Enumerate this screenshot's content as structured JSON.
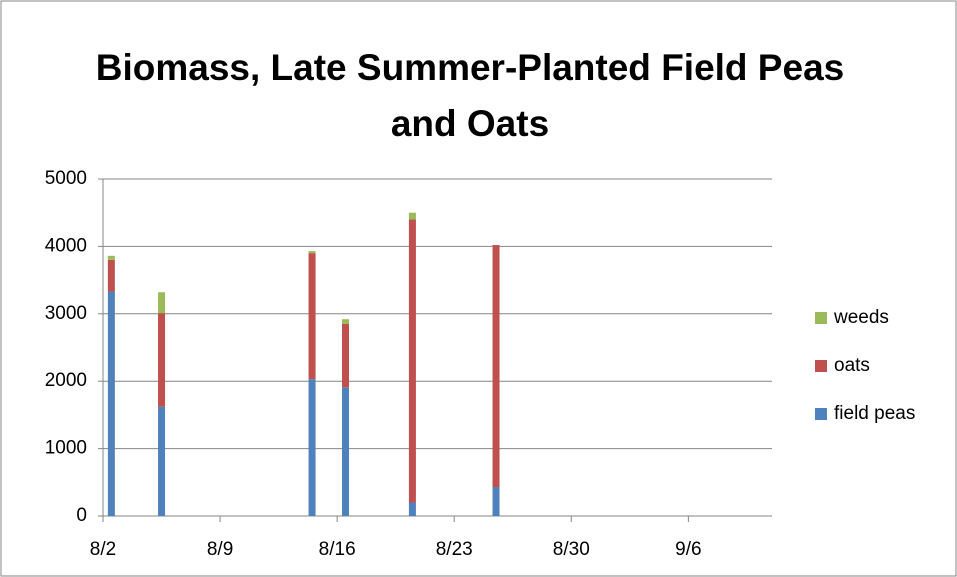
{
  "chart_data": {
    "type": "bar",
    "stacked": true,
    "title": "Biomass, Late Summer-Planted Field Peas and Oats",
    "x": [
      "8/2",
      "8/5",
      "8/14",
      "8/16",
      "8/20",
      "8/25"
    ],
    "series": [
      {
        "name": "field peas",
        "color": "#4f81bd",
        "values": [
          3330,
          1620,
          2030,
          1910,
          200,
          430
        ]
      },
      {
        "name": "oats",
        "color": "#c0504d",
        "values": [
          470,
          1390,
          1870,
          940,
          4200,
          3590
        ]
      },
      {
        "name": "weeds",
        "color": "#9bbb59",
        "values": [
          60,
          310,
          30,
          70,
          100,
          0
        ]
      }
    ],
    "xlim": [
      "8/2",
      "9/11"
    ],
    "xticks": [
      "8/2",
      "8/9",
      "8/16",
      "8/23",
      "8/30",
      "9/6"
    ],
    "ylim": [
      0,
      5000
    ],
    "yticks": [
      0,
      1000,
      2000,
      3000,
      4000,
      5000
    ],
    "grid": true,
    "legend": "right"
  }
}
